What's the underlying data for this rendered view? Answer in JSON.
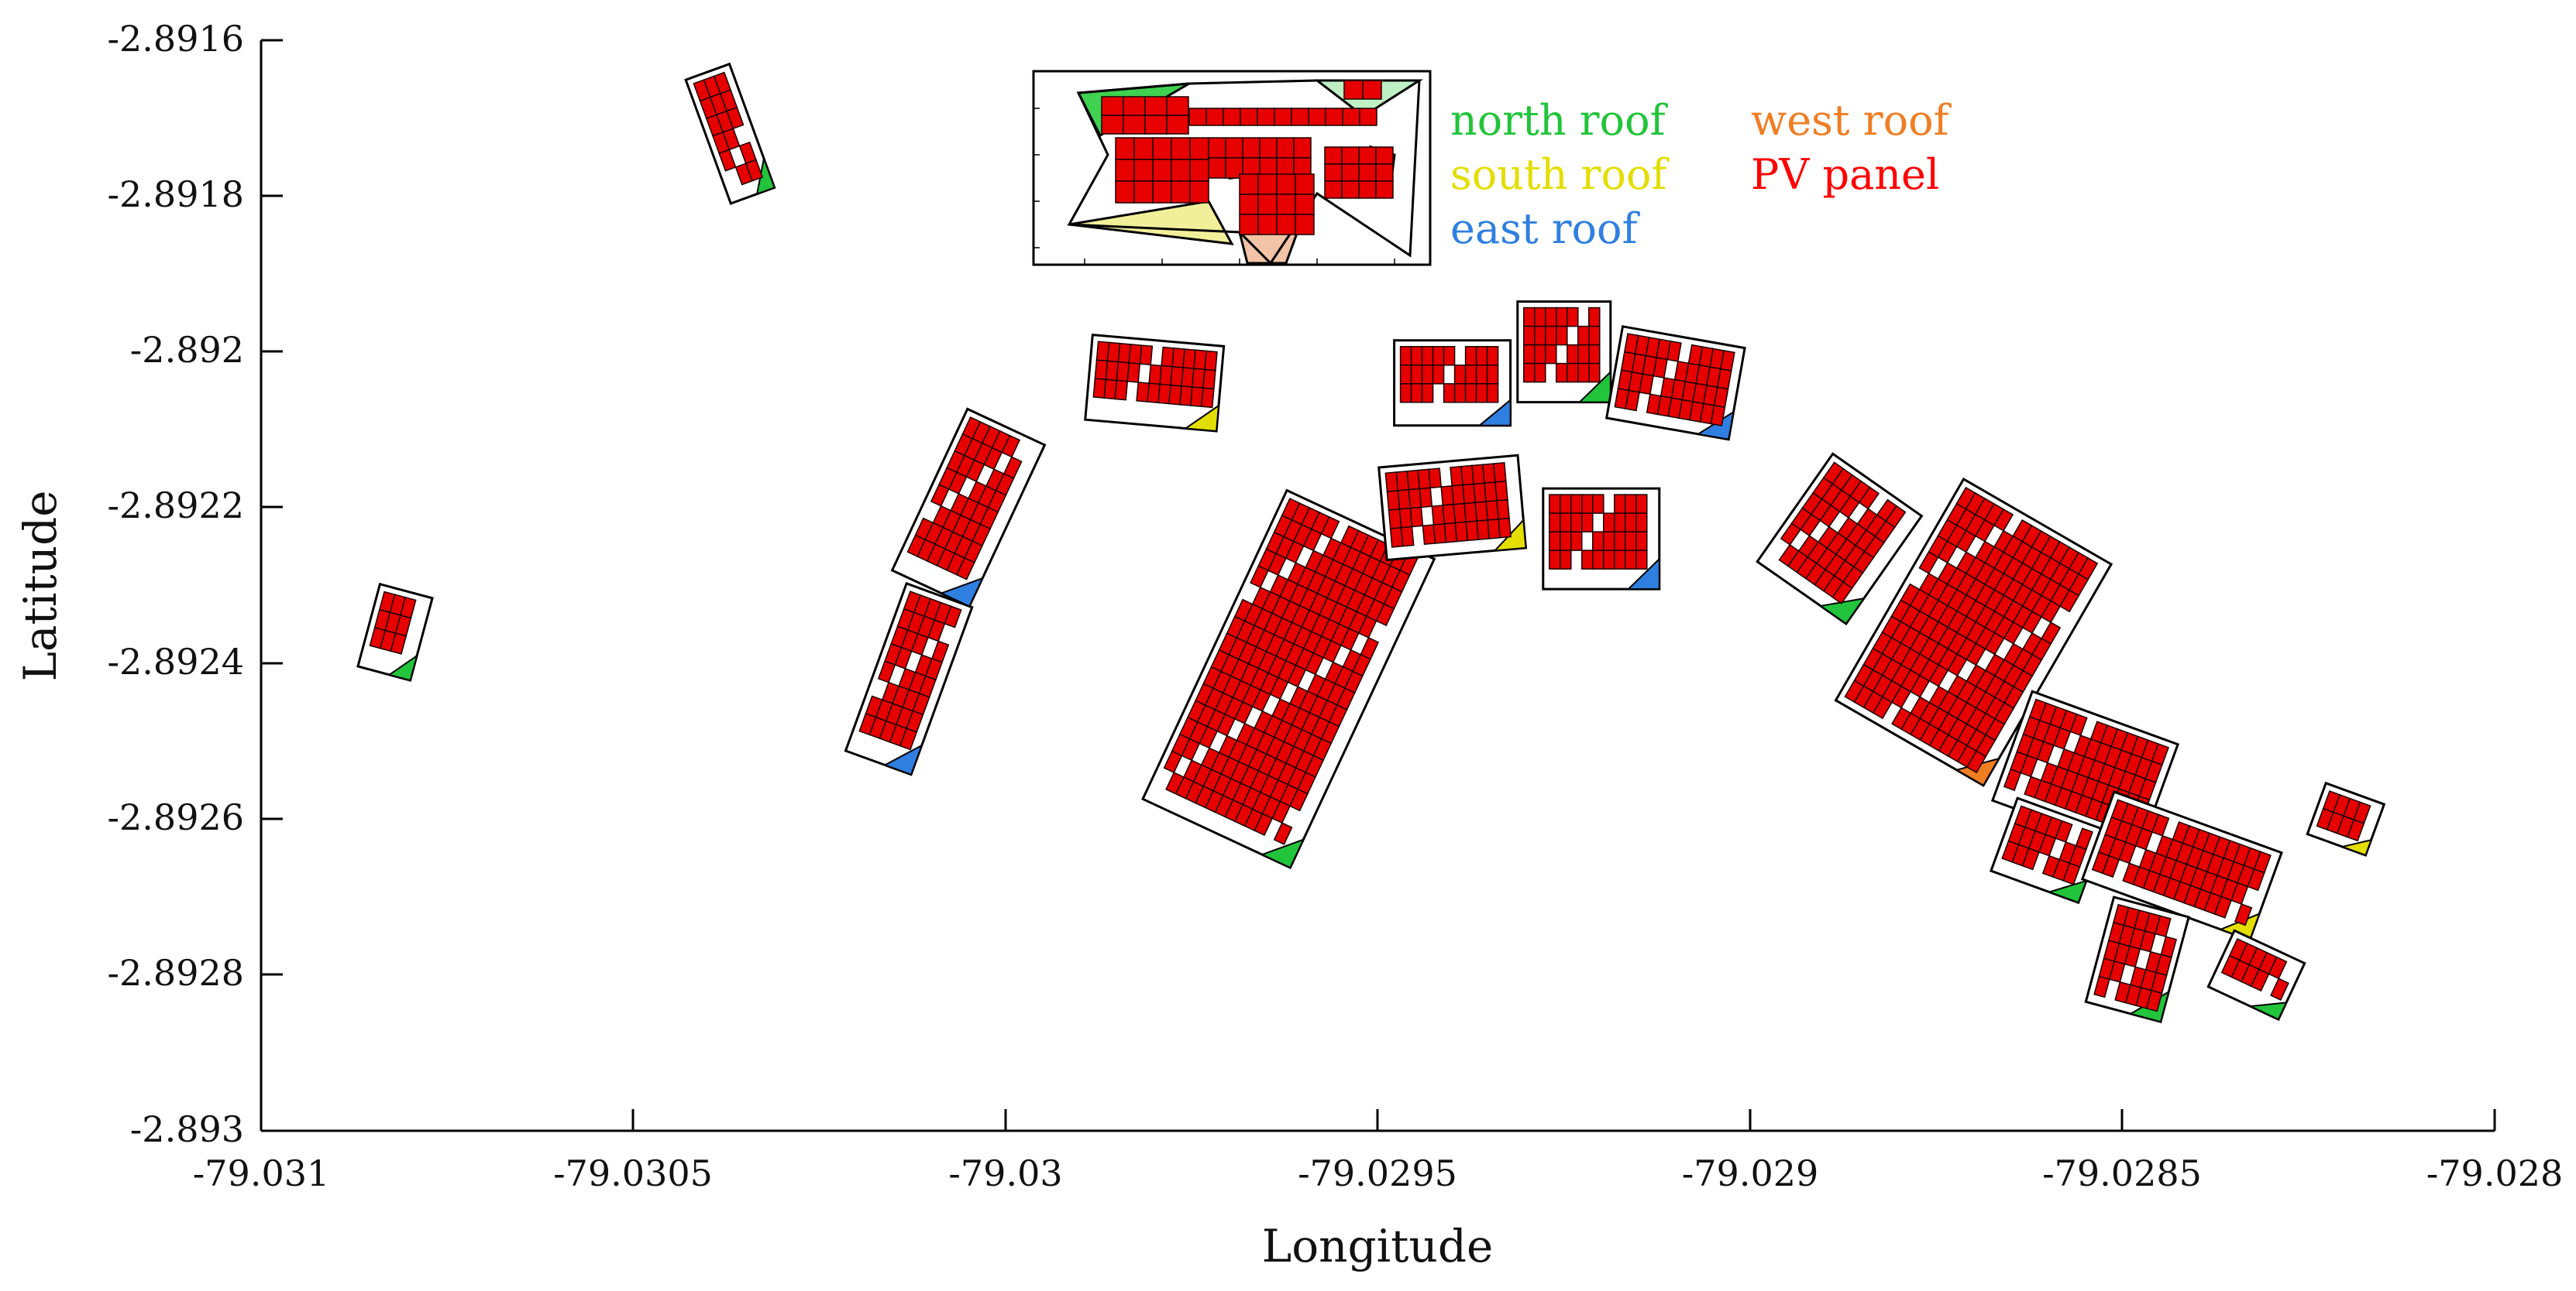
{
  "figure": {
    "xlabel": "Longitude",
    "ylabel": "Latitude",
    "x_ticks": [
      "-79.031",
      "-79.0305",
      "-79.03",
      "-79.0295",
      "-79.029",
      "-79.0285",
      "-79.028"
    ],
    "y_ticks": [
      "-2.8916",
      "-2.8918",
      "-2.892",
      "-2.8922",
      "-2.8924",
      "-2.8926",
      "-2.8928",
      "-2.893"
    ],
    "xlim": [
      -79.031,
      -79.028
    ],
    "ylim": [
      -2.893,
      -2.8916
    ]
  },
  "legend": {
    "north": {
      "label": "north roof",
      "color": "#21c43a"
    },
    "south": {
      "label": "south roof",
      "color": "#e3de00"
    },
    "east": {
      "label": "east roof",
      "color": "#2f7fe0"
    },
    "west": {
      "label": "west roof",
      "color": "#ef7d22"
    },
    "panel": {
      "label": "PV panel",
      "color": "#ff0000"
    }
  },
  "colors": {
    "panel_fill": "#e60000",
    "panel_edge": "#1a0000",
    "outline": "#000000"
  },
  "buildings": [
    {
      "id": "b01",
      "lon": -79.03037,
      "lat": -2.89172
    },
    {
      "id": "b02",
      "lon": -79.03082,
      "lat": -2.89236
    },
    {
      "id": "b03",
      "lon": -79.03013,
      "lat": -2.89242
    },
    {
      "id": "b04",
      "lon": -79.03005,
      "lat": -2.8922
    },
    {
      "id": "b05",
      "lon": -79.0298,
      "lat": -2.89204
    },
    {
      "id": "b06",
      "lon": -79.0294,
      "lat": -2.89204
    },
    {
      "id": "b07",
      "lon": -79.02925,
      "lat": -2.892
    },
    {
      "id": "b08",
      "lon": -79.0291,
      "lat": -2.89204
    },
    {
      "id": "b09",
      "lon": -79.02962,
      "lat": -2.89242
    },
    {
      "id": "b10",
      "lon": -79.0294,
      "lat": -2.8922
    },
    {
      "id": "b11",
      "lon": -79.0292,
      "lat": -2.89224
    },
    {
      "id": "b12",
      "lon": -79.02888,
      "lat": -2.89224
    },
    {
      "id": "b13",
      "lon": -79.0287,
      "lat": -2.89236
    },
    {
      "id": "b14",
      "lon": -79.02855,
      "lat": -2.89254
    },
    {
      "id": "b15",
      "lon": -79.0286,
      "lat": -2.89264
    },
    {
      "id": "b16",
      "lon": -79.02842,
      "lat": -2.89266
    },
    {
      "id": "b17",
      "lon": -79.02848,
      "lat": -2.89278
    },
    {
      "id": "b18",
      "lon": -79.02832,
      "lat": -2.8928
    },
    {
      "id": "b19",
      "lon": -79.0282,
      "lat": -2.8926
    }
  ]
}
